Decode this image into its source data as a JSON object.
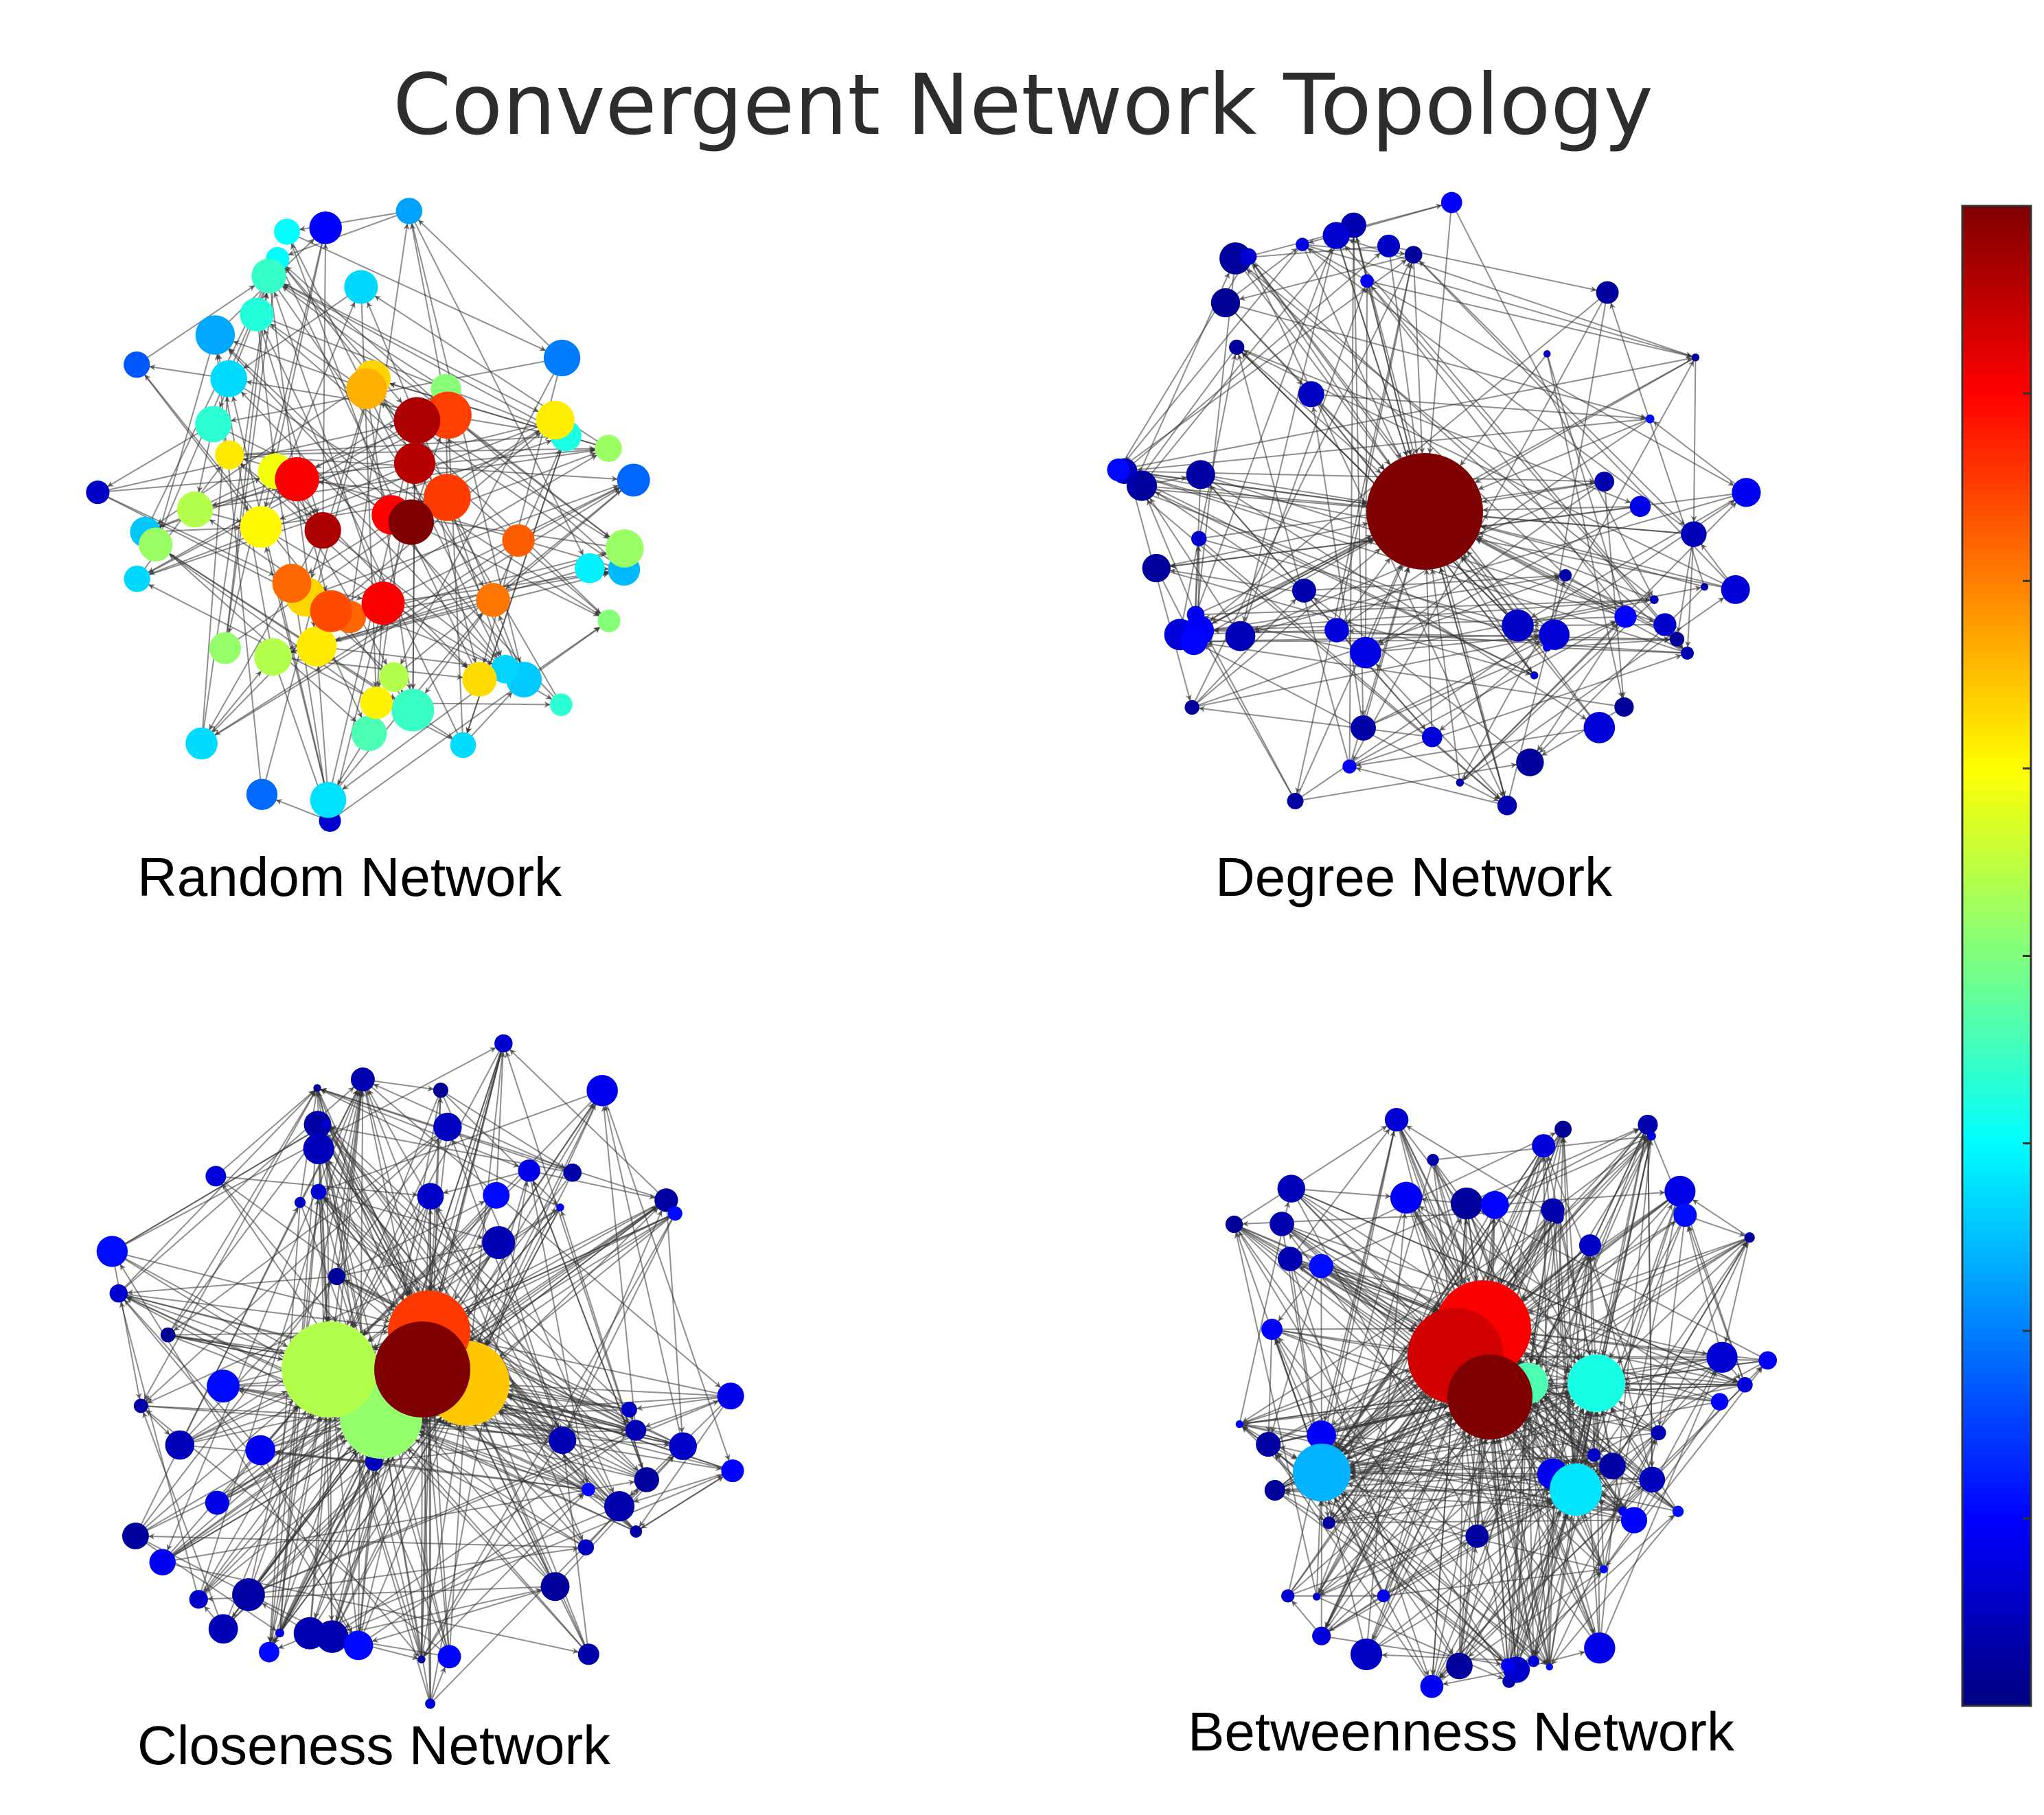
{
  "title": "Convergent Network Topology",
  "colors": {
    "background": "#ffffff",
    "edge": "#333333",
    "colormap": "jet",
    "colormap_stops": [
      "#00007f",
      "#0000ff",
      "#007fff",
      "#00ffff",
      "#7fff7f",
      "#ffff00",
      "#ff7f00",
      "#ff0000",
      "#7f0000"
    ]
  },
  "colorbar": {
    "tick_count": 7
  },
  "panels": [
    {
      "label": "Random Network",
      "node_count": 62,
      "hub_count": 0,
      "scheme": "random-mixed",
      "seed": 11
    },
    {
      "label": "Degree Network",
      "node_count": 58,
      "hub_count": 1,
      "scheme": "single-hub",
      "seed": 23
    },
    {
      "label": "Closeness Network",
      "node_count": 62,
      "hub_count": 5,
      "scheme": "multi-hub-warm",
      "seed": 37
    },
    {
      "label": "Betweenness Network",
      "node_count": 62,
      "hub_count": 7,
      "scheme": "multi-hub-mixed",
      "seed": 53
    }
  ]
}
